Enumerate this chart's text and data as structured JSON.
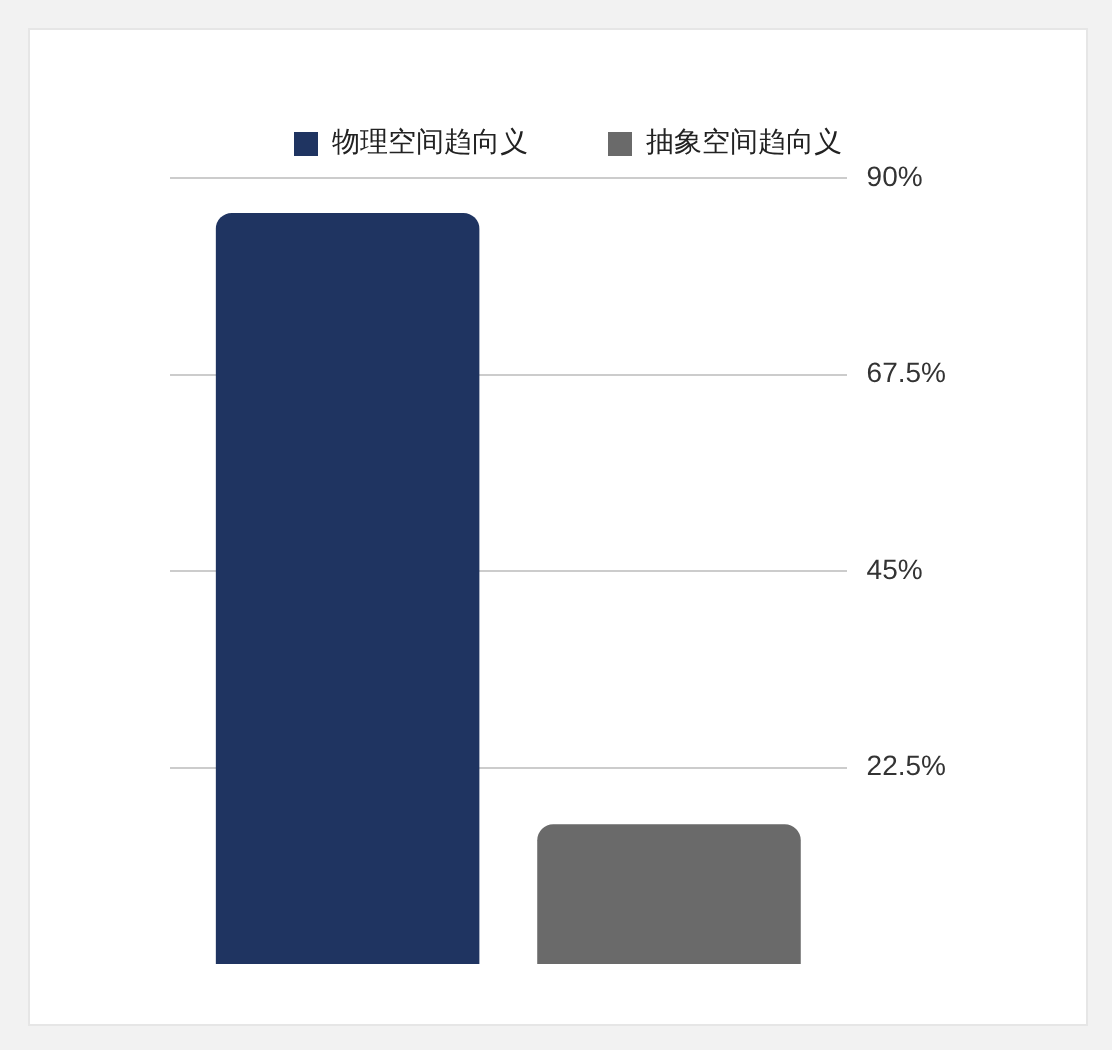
{
  "chart_data": {
    "type": "bar",
    "categories": [
      null
    ],
    "series": [
      {
        "name": "物理空间趋向义",
        "color": "#1f3461",
        "values": [
          86
        ]
      },
      {
        "name": "抽象空间趋向义",
        "color": "#6a6a6a",
        "values": [
          16
        ]
      }
    ],
    "ylim": [
      0,
      90
    ],
    "yticks": [
      {
        "value": 22.5,
        "label": "22.5%"
      },
      {
        "value": 45,
        "label": "45%"
      },
      {
        "value": 67.5,
        "label": "67.5%"
      },
      {
        "value": 90,
        "label": "90%"
      }
    ],
    "grid": "y",
    "legend": "top"
  }
}
